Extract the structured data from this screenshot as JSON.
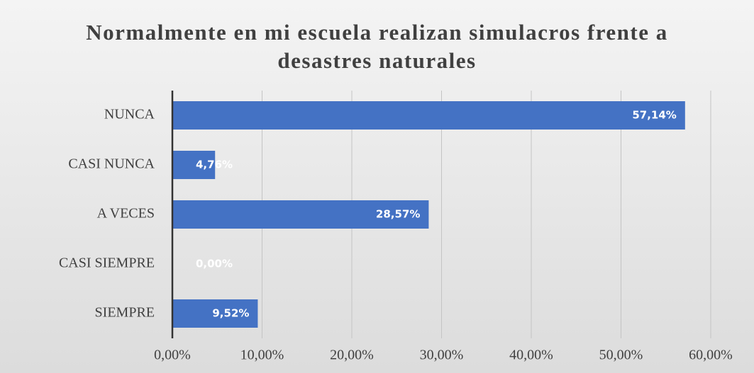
{
  "chart_data": {
    "type": "bar",
    "orientation": "horizontal",
    "title": "Normalmente en mi escuela realizan simulacros frente a desastres naturales",
    "categories": [
      "NUNCA",
      "CASI NUNCA",
      "A VECES",
      "CASI SIEMPRE",
      "SIEMPRE"
    ],
    "values": [
      57.14,
      4.76,
      28.57,
      0,
      9.52
    ],
    "value_labels": [
      "57,14%",
      "4,76%",
      "28,57%",
      "0,00%",
      "9,52%"
    ],
    "color": "#4472c4",
    "xlim": [
      0,
      60
    ],
    "xticks": [
      {
        "value": 0,
        "label": "0,00%"
      },
      {
        "value": 10,
        "label": "10,00%"
      },
      {
        "value": 20,
        "label": "20,00%"
      },
      {
        "value": 30,
        "label": "30,00%"
      },
      {
        "value": 40,
        "label": "40,00%"
      },
      {
        "value": 50,
        "label": "50,00%"
      },
      {
        "value": 60,
        "label": "60,00%"
      }
    ],
    "grid": true
  }
}
